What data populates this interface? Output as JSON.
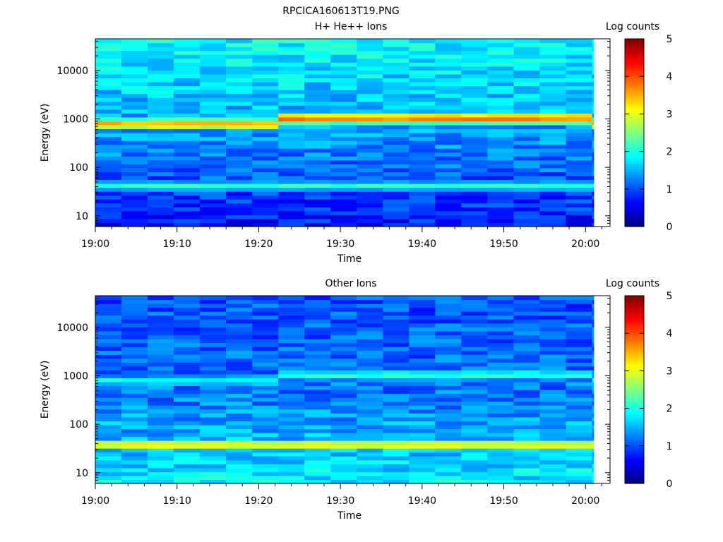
{
  "figure_title": "RPCICA160613T19.PNG",
  "panels": [
    {
      "title": "H+ He++ Ions",
      "xlabel": "Time",
      "ylabel": "Energy (eV)",
      "colorbar_label": "Log counts"
    },
    {
      "title": "Other Ions",
      "xlabel": "Time",
      "ylabel": "Energy (eV)",
      "colorbar_label": "Log counts"
    }
  ],
  "chart_data": [
    {
      "type": "heatmap",
      "title": "H+ He++ Ions",
      "xlabel": "Time",
      "ylabel": "Energy (eV)",
      "x_ticks": [
        "19:00",
        "19:10",
        "19:20",
        "19:30",
        "19:40",
        "19:50",
        "20:00"
      ],
      "x_range_minutes": [
        0,
        63
      ],
      "x_data_end_minutes": 61,
      "y_scale": "log",
      "y_ticks": [
        "10",
        "100",
        "1000",
        "10000"
      ],
      "y_range": [
        6,
        45000
      ],
      "colorbar": {
        "label": "Log counts",
        "ticks": [
          "0",
          "1",
          "2",
          "3",
          "4",
          "5"
        ],
        "range": [
          0,
          5
        ],
        "colormap": "jet"
      },
      "time_bin_minutes": 3.2,
      "energy_bins": 48,
      "features": {
        "peak_energy_eV": 800,
        "peak_energy_rise_eV": 1050,
        "peak_width_decades": 0.1,
        "peak_log_counts": 3.8,
        "secondary_energy_eV": 42,
        "secondary_log_counts": 2.1,
        "background_high_log_counts": 1.9,
        "background_mid_log_counts": 1.4,
        "background_low_log_counts": 0.7
      }
    },
    {
      "type": "heatmap",
      "title": "Other Ions",
      "xlabel": "Time",
      "ylabel": "Energy (eV)",
      "x_ticks": [
        "19:00",
        "19:10",
        "19:20",
        "19:30",
        "19:40",
        "19:50",
        "20:00"
      ],
      "x_range_minutes": [
        0,
        63
      ],
      "x_data_end_minutes": 61,
      "y_scale": "log",
      "y_ticks": [
        "10",
        "100",
        "1000",
        "10000"
      ],
      "y_range": [
        6,
        45000
      ],
      "colorbar": {
        "label": "Log counts",
        "ticks": [
          "0",
          "1",
          "2",
          "3",
          "4",
          "5"
        ],
        "range": [
          0,
          5
        ],
        "colormap": "jet"
      },
      "time_bin_minutes": 3.2,
      "energy_bins": 48,
      "features": {
        "peak_energy_eV": 800,
        "peak_energy_rise_eV": 1050,
        "peak_width_decades": 0.1,
        "peak_log_counts": 2.1,
        "secondary_energy_eV": 38,
        "secondary_log_counts": 3.2,
        "background_high_log_counts": 1.0,
        "background_mid_log_counts": 1.2,
        "background_low_log_counts": 1.8
      }
    }
  ]
}
